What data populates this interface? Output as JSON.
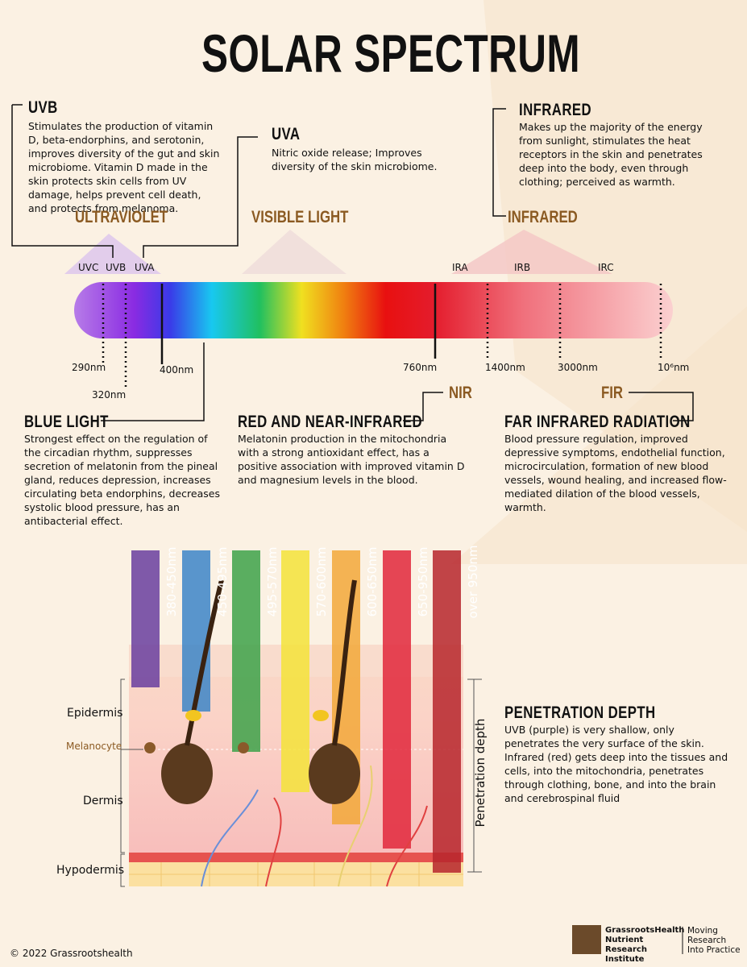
{
  "title": "SOLAR SPECTRUM",
  "callouts": {
    "uvb": {
      "heading": "UVB",
      "body": "Stimulates the production of vitamin D, beta-endorphins, and serotonin, improves diversity of the gut and skin microbiome. Vitamin D made in the skin protects skin cells from UV damage, helps prevent cell death, and protects from melanoma."
    },
    "uva": {
      "heading": "UVA",
      "body": "Nitric oxide release; Improves diversity of the skin microbiome."
    },
    "infrared": {
      "heading": "INFRARED",
      "body": "Makes up the majority of the energy from sunlight, stimulates the heat receptors in the skin and penetrates deep into the body, even through clothing; perceived as warmth."
    },
    "blue_light": {
      "heading": "BLUE LIGHT",
      "body": "Strongest effect on the regulation of the circadian rhythm, suppresses secretion of melatonin from the pineal gland, reduces depression, increases circulating beta endorphins, decreases systolic blood pressure, has an antibacterial effect."
    },
    "red_nir": {
      "heading": "RED AND NEAR-INFRARED",
      "body": "Melatonin production in the mitochondria with a strong antioxidant effect, has a positive association with improved vitamin D and magnesium levels in the blood."
    },
    "far_infrared": {
      "heading": "FAR INFRARED RADIATION",
      "body": "Blood pressure regulation, improved depressive symptoms, endothelial function, microcirculation, formation of new blood vessels, wound healing, and increased flow-mediated dilation of the blood vessels, warmth."
    },
    "penetration": {
      "heading": "PENETRATION DEPTH",
      "body": "UVB (purple) is very shallow, only penetrates the very surface of the skin.  Infrared (red) gets deep into the tissues and cells, into the mitochondria, penetrates through clothing, bone, and into the brain and cerebrospinal fluid"
    }
  },
  "spectrum": {
    "bands": [
      "ULTRAVIOLET",
      "VISIBLE LIGHT",
      "INFRARED"
    ],
    "sub_bands": [
      "UVC",
      "UVB",
      "UVA",
      "IRA",
      "IRB",
      "IRC"
    ],
    "wavelengths": [
      "290nm",
      "320nm",
      "400nm",
      "760nm",
      "1400nm",
      "3000nm",
      "10⁶nm"
    ],
    "nir": "NIR",
    "fir": "FIR"
  },
  "wavelength_bars": [
    "380-450nm",
    "450-495nm",
    "495-570nm",
    "570-600nm",
    "600-650nm",
    "650-950nm",
    "over  950nm"
  ],
  "skin_layers": [
    "Epidermis",
    "Melanocyte",
    "Dermis",
    "Hypodermis"
  ],
  "penetration_axis": "Penetration depth",
  "footer": {
    "copyright": "© 2022 Grassrootshealth",
    "org": "GrassrootsHealth Nutrient Research Institute",
    "tagline": "Moving Research Into Practice"
  }
}
